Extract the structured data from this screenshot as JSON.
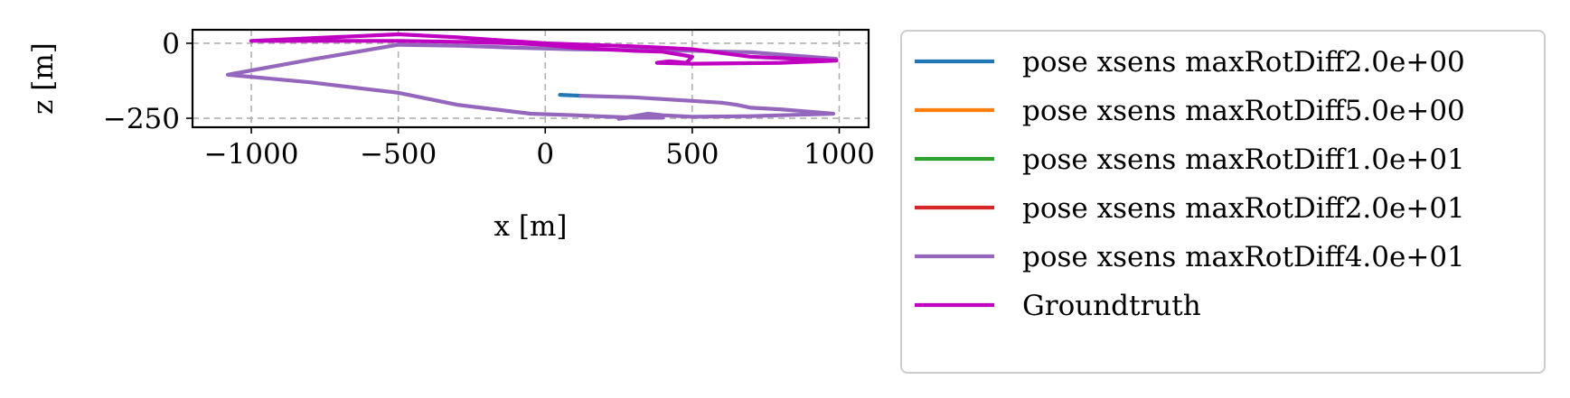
{
  "chart_data": {
    "type": "line",
    "xlabel": "x [m]",
    "ylabel": "z [m]",
    "xlim": [
      -1200,
      1100
    ],
    "ylim": [
      -280,
      45
    ],
    "xticks": [
      -1000,
      -500,
      0,
      500,
      1000
    ],
    "yticks": [
      0,
      -250
    ],
    "xtick_labels": [
      "−1000",
      "−500",
      "0",
      "500",
      "1000"
    ],
    "ytick_labels": [
      "0",
      "−250"
    ],
    "grid": true,
    "legend_position": "outside-right",
    "series": [
      {
        "name": "pose xsens maxRotDiff2.0e+00",
        "color": "#1f77b4",
        "x": [
          50,
          120
        ],
        "y": [
          -172,
          -175
        ]
      },
      {
        "name": "pose xsens maxRotDiff5.0e+00",
        "color": "#ff7f0e",
        "x": [],
        "y": []
      },
      {
        "name": "pose xsens maxRotDiff1.0e+01",
        "color": "#2ca02c",
        "x": [],
        "y": []
      },
      {
        "name": "pose xsens maxRotDiff2.0e+01",
        "color": "#d62728",
        "x": [],
        "y": []
      },
      {
        "name": "pose xsens maxRotDiff4.0e+01",
        "color": "#9467bd",
        "x": [
          120,
          300,
          600,
          650,
          700,
          800,
          980,
          700,
          500,
          400,
          350,
          300,
          250,
          350,
          400,
          300,
          100,
          -50,
          -300,
          -500,
          -800,
          -1080,
          -800,
          -500,
          -300,
          -100,
          100,
          300,
          500,
          700,
          990
        ],
        "y": [
          -175,
          -180,
          -198,
          -205,
          -215,
          -220,
          -235,
          -243,
          -245,
          -240,
          -235,
          -243,
          -252,
          -240,
          -248,
          -248,
          -240,
          -235,
          -205,
          -165,
          -130,
          -105,
          -55,
          -5,
          -8,
          -15,
          -20,
          -22,
          -25,
          -30,
          -52
        ]
      },
      {
        "name": "Groundtruth",
        "color": "#c000c0",
        "x": [
          990,
          800,
          500,
          380,
          420,
          480,
          500,
          400,
          300,
          100,
          0,
          -100,
          -300,
          -500,
          -1000,
          -500,
          -300,
          0,
          300,
          400,
          500,
          700,
          990
        ],
        "y": [
          -58,
          -65,
          -68,
          -65,
          -60,
          -65,
          -45,
          -28,
          -25,
          -15,
          -5,
          0,
          5,
          8,
          8,
          30,
          20,
          0,
          -10,
          -15,
          -20,
          -45,
          -58
        ]
      }
    ]
  }
}
